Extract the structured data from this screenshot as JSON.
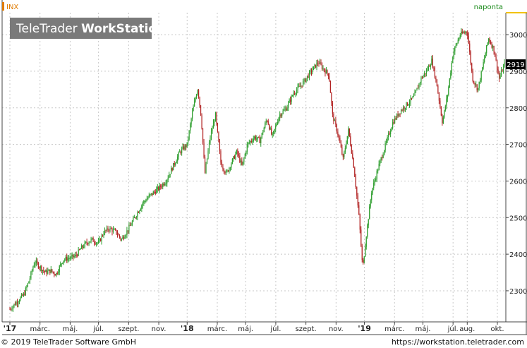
{
  "chart_data": {
    "type": "candlestick",
    "symbol": "INX",
    "interval": "naponta",
    "watermark": {
      "part1": "TeleTrader",
      "part2": "WorkStation"
    },
    "last_price": "2919",
    "ylim": [
      2215,
      3060
    ],
    "y_ticks": [
      2300,
      2400,
      2500,
      2600,
      2700,
      2800,
      2900,
      3000
    ],
    "x_ticks": [
      {
        "label": "'17",
        "bold": true,
        "pos": 0.0
      },
      {
        "label": "márc.",
        "bold": false,
        "pos": 0.085
      },
      {
        "label": "máj.",
        "bold": false,
        "pos": 0.17
      },
      {
        "label": "júl.",
        "bold": false,
        "pos": 0.25
      },
      {
        "label": "szept.",
        "bold": false,
        "pos": 0.335
      },
      {
        "label": "nov.",
        "bold": false,
        "pos": 0.42
      },
      {
        "label": "'18",
        "bold": true,
        "pos": 0.5
      },
      {
        "label": "márc.",
        "bold": false,
        "pos": 0.585
      },
      {
        "label": "máj.",
        "bold": false,
        "pos": 0.665
      },
      {
        "label": "júl.",
        "bold": false,
        "pos": 0.75
      },
      {
        "label": "szept.",
        "bold": false,
        "pos": 0.835
      },
      {
        "label": "nov.",
        "bold": false,
        "pos": 0.92
      },
      {
        "label": "'19",
        "bold": true,
        "pos": 1.0
      },
      {
        "label": "márc.",
        "bold": false,
        "pos": 1.085
      },
      {
        "label": "máj.",
        "bold": false,
        "pos": 1.165
      },
      {
        "label": "júl.",
        "bold": false,
        "pos": 1.25
      },
      {
        "label": "aug.",
        "bold": false,
        "pos": 1.29
      },
      {
        "label": "okt.",
        "bold": false,
        "pos": 1.375
      }
    ],
    "x_range": [
      0.0,
      1.4
    ],
    "series": [
      {
        "t": 0.0,
        "v": 2250
      },
      {
        "t": 0.02,
        "v": 2270
      },
      {
        "t": 0.04,
        "v": 2290
      },
      {
        "t": 0.055,
        "v": 2330
      },
      {
        "t": 0.07,
        "v": 2380
      },
      {
        "t": 0.085,
        "v": 2365
      },
      {
        "t": 0.1,
        "v": 2350
      },
      {
        "t": 0.115,
        "v": 2355
      },
      {
        "t": 0.13,
        "v": 2345
      },
      {
        "t": 0.15,
        "v": 2385
      },
      {
        "t": 0.17,
        "v": 2390
      },
      {
        "t": 0.185,
        "v": 2395
      },
      {
        "t": 0.2,
        "v": 2415
      },
      {
        "t": 0.215,
        "v": 2430
      },
      {
        "t": 0.23,
        "v": 2440
      },
      {
        "t": 0.25,
        "v": 2430
      },
      {
        "t": 0.265,
        "v": 2460
      },
      {
        "t": 0.28,
        "v": 2470
      },
      {
        "t": 0.3,
        "v": 2460
      },
      {
        "t": 0.315,
        "v": 2440
      },
      {
        "t": 0.335,
        "v": 2470
      },
      {
        "t": 0.355,
        "v": 2505
      },
      {
        "t": 0.375,
        "v": 2540
      },
      {
        "t": 0.395,
        "v": 2560
      },
      {
        "t": 0.42,
        "v": 2580
      },
      {
        "t": 0.44,
        "v": 2600
      },
      {
        "t": 0.46,
        "v": 2640
      },
      {
        "t": 0.48,
        "v": 2680
      },
      {
        "t": 0.5,
        "v": 2700
      },
      {
        "t": 0.515,
        "v": 2790
      },
      {
        "t": 0.53,
        "v": 2855
      },
      {
        "t": 0.54,
        "v": 2770
      },
      {
        "t": 0.55,
        "v": 2620
      },
      {
        "t": 0.565,
        "v": 2720
      },
      {
        "t": 0.58,
        "v": 2780
      },
      {
        "t": 0.595,
        "v": 2650
      },
      {
        "t": 0.61,
        "v": 2620
      },
      {
        "t": 0.625,
        "v": 2650
      },
      {
        "t": 0.64,
        "v": 2680
      },
      {
        "t": 0.655,
        "v": 2640
      },
      {
        "t": 0.67,
        "v": 2700
      },
      {
        "t": 0.69,
        "v": 2720
      },
      {
        "t": 0.705,
        "v": 2710
      },
      {
        "t": 0.725,
        "v": 2770
      },
      {
        "t": 0.74,
        "v": 2720
      },
      {
        "t": 0.76,
        "v": 2780
      },
      {
        "t": 0.78,
        "v": 2800
      },
      {
        "t": 0.8,
        "v": 2840
      },
      {
        "t": 0.82,
        "v": 2860
      },
      {
        "t": 0.835,
        "v": 2880
      },
      {
        "t": 0.85,
        "v": 2900
      },
      {
        "t": 0.87,
        "v": 2925
      },
      {
        "t": 0.885,
        "v": 2905
      },
      {
        "t": 0.9,
        "v": 2890
      },
      {
        "t": 0.91,
        "v": 2780
      },
      {
        "t": 0.925,
        "v": 2730
      },
      {
        "t": 0.94,
        "v": 2660
      },
      {
        "t": 0.955,
        "v": 2740
      },
      {
        "t": 0.97,
        "v": 2640
      },
      {
        "t": 0.985,
        "v": 2500
      },
      {
        "t": 0.995,
        "v": 2360
      },
      {
        "t": 1.005,
        "v": 2450
      },
      {
        "t": 1.02,
        "v": 2570
      },
      {
        "t": 1.04,
        "v": 2640
      },
      {
        "t": 1.06,
        "v": 2700
      },
      {
        "t": 1.08,
        "v": 2760
      },
      {
        "t": 1.1,
        "v": 2790
      },
      {
        "t": 1.12,
        "v": 2810
      },
      {
        "t": 1.14,
        "v": 2830
      },
      {
        "t": 1.16,
        "v": 2880
      },
      {
        "t": 1.175,
        "v": 2900
      },
      {
        "t": 1.19,
        "v": 2930
      },
      {
        "t": 1.205,
        "v": 2860
      },
      {
        "t": 1.22,
        "v": 2760
      },
      {
        "t": 1.235,
        "v": 2840
      },
      {
        "t": 1.25,
        "v": 2950
      },
      {
        "t": 1.27,
        "v": 3000
      },
      {
        "t": 1.29,
        "v": 3010
      },
      {
        "t": 1.305,
        "v": 2880
      },
      {
        "t": 1.32,
        "v": 2850
      },
      {
        "t": 1.335,
        "v": 2920
      },
      {
        "t": 1.35,
        "v": 2990
      },
      {
        "t": 1.365,
        "v": 2960
      },
      {
        "t": 1.38,
        "v": 2880
      },
      {
        "t": 1.395,
        "v": 2919
      }
    ]
  },
  "footer": {
    "copyright": "© 2019 TeleTrader Software GmbH",
    "url": "https://workstation.teletrader.com"
  },
  "colors": {
    "up": "#2f9e2f",
    "down": "#b22222",
    "grid": "#c8c8c8",
    "symbol_text": "#e07b00",
    "interval_text": "#1a8a1a",
    "watermark_bg": "#777777",
    "last_price_bg": "#000000"
  }
}
